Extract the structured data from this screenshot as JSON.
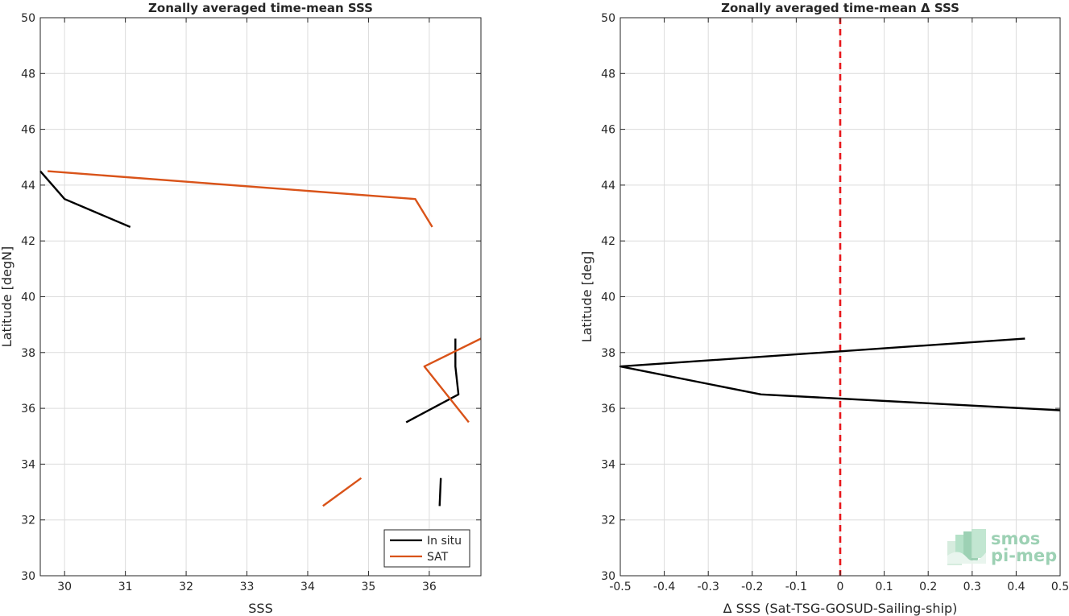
{
  "chart_data": [
    {
      "type": "line",
      "title": "Zonally averaged time-mean SSS",
      "xlabel": "SSS",
      "ylabel": "Latitude [degN]",
      "xlim": [
        29.6,
        36.85
      ],
      "ylim": [
        30,
        50
      ],
      "xticks": [
        30,
        31,
        32,
        33,
        34,
        35,
        36
      ],
      "yticks": [
        30,
        32,
        34,
        36,
        38,
        40,
        42,
        44,
        46,
        48,
        50
      ],
      "grid": true,
      "legend_position": "bottom-right",
      "series": [
        {
          "name": "In situ",
          "color": "#000000",
          "segments": [
            [
              [
                29.6,
                44.5
              ],
              [
                30.0,
                43.5
              ],
              [
                31.08,
                42.5
              ]
            ],
            [
              [
                35.62,
                35.5
              ],
              [
                36.48,
                36.5
              ],
              [
                36.43,
                37.5
              ],
              [
                36.43,
                38.5
              ]
            ],
            [
              [
                36.17,
                32.5
              ],
              [
                36.19,
                33.5
              ]
            ]
          ]
        },
        {
          "name": "SAT",
          "color": "#D95319",
          "segments": [
            [
              [
                29.72,
                44.5
              ],
              [
                35.77,
                43.5
              ],
              [
                36.05,
                42.5
              ]
            ],
            [
              [
                36.65,
                35.5
              ],
              [
                35.92,
                37.5
              ],
              [
                36.85,
                38.5
              ]
            ],
            [
              [
                34.25,
                32.5
              ],
              [
                34.88,
                33.5
              ]
            ]
          ]
        }
      ]
    },
    {
      "type": "line",
      "title": "Zonally averaged time-mean Δ SSS",
      "xlabel": "Δ SSS (Sat-TSG-GOSUD-Sailing-ship)",
      "ylabel": "Latitude [deg]",
      "xlim": [
        -0.5,
        0.5
      ],
      "ylim": [
        30,
        50
      ],
      "xticks": [
        -0.5,
        -0.4,
        -0.3,
        -0.2,
        -0.1,
        0,
        0.1,
        0.2,
        0.3,
        0.4,
        0.5
      ],
      "yticks": [
        30,
        32,
        34,
        36,
        38,
        40,
        42,
        44,
        46,
        48,
        50
      ],
      "grid": true,
      "series": [
        {
          "color": "#000000",
          "segments": [
            [
              [
                0.5,
                35.93
              ],
              [
                -0.18,
                36.5
              ],
              [
                -0.5,
                37.5
              ],
              [
                0.42,
                38.5
              ]
            ]
          ]
        }
      ],
      "reference_line": {
        "x": 0,
        "color": "#E8161B",
        "style": "dashed"
      }
    }
  ],
  "logo": {
    "line1": "smos",
    "line2": "pi-mep",
    "color": "#8CC9A8"
  }
}
